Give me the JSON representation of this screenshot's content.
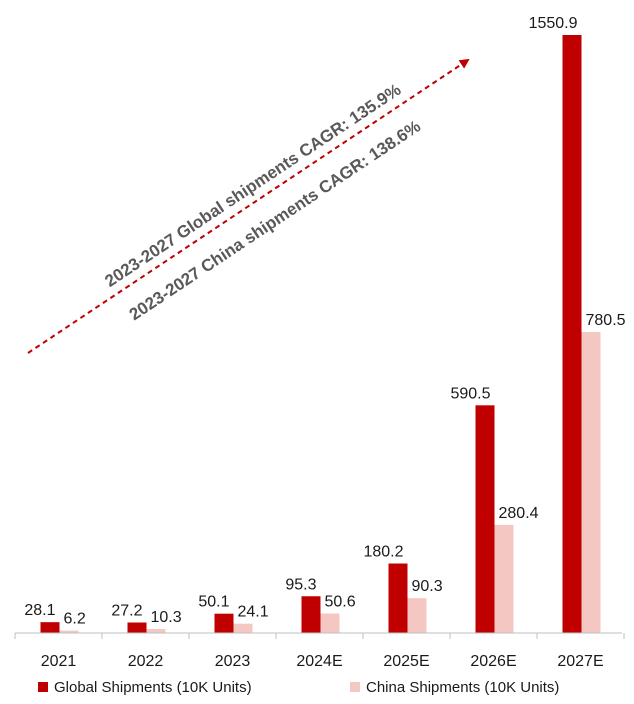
{
  "colors": {
    "global": "#c00000",
    "china": "#f4c7c3",
    "axis": "#bfbfbf",
    "arrow": "#c00000",
    "annotation": "#595959"
  },
  "chart_data": {
    "type": "bar",
    "categories": [
      "2021",
      "2022",
      "2023",
      "2024E",
      "2025E",
      "2026E",
      "2027E"
    ],
    "series": [
      {
        "name": "Global Shipments (10K Units)",
        "values": [
          28.1,
          27.2,
          50.1,
          95.3,
          180.2,
          590.5,
          1550.9
        ],
        "labels": [
          "28.1",
          "27.2",
          "50.1",
          "95.3",
          "180.2",
          "590.5",
          "1550.9"
        ]
      },
      {
        "name": "China Shipments (10K Units)",
        "values": [
          6.2,
          10.3,
          24.1,
          50.6,
          90.3,
          280.4,
          780.5
        ],
        "labels": [
          "6.2",
          "10.3",
          "24.1",
          "50.6",
          "90.3",
          "280.4",
          "780.5"
        ]
      }
    ],
    "ylim": [
      0,
      1550.9
    ],
    "grid": false,
    "legend": "bottom",
    "annotations": [
      "2023-2027 Global shipments CAGR: 135.9%",
      "2023-2027 China shipments CAGR: 138.6%"
    ]
  }
}
